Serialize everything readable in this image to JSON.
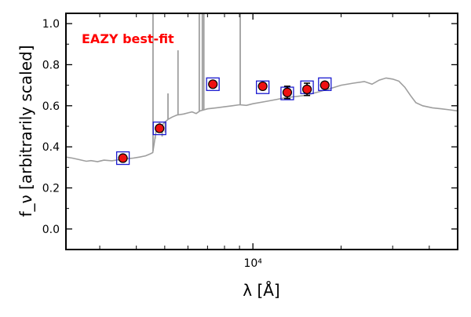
{
  "chart_data": {
    "type": "scatter",
    "xscale": "log",
    "xlim": [
      2300,
      50000
    ],
    "ylim": [
      -0.1,
      1.05
    ],
    "grid": false,
    "ylabel": "f_ν [arbitrarily scaled]",
    "xlabel": "λ [Å]",
    "ytick_labels": [
      "0.0",
      "0.2",
      "0.4",
      "0.6",
      "0.8",
      "1.0"
    ],
    "yticks": [
      0.0,
      0.2,
      0.4,
      0.6,
      0.8,
      1.0
    ],
    "xtick_labels": [
      "10⁴"
    ],
    "xticks": [
      10000
    ],
    "annotation": {
      "text": "EAZY best-fit",
      "color": "#ff0000"
    },
    "colors": {
      "model": "#9e9e9e",
      "points": "#ee1111",
      "boxes": "#1a1ad0",
      "errorbars": "#000000"
    },
    "photometry": [
      {
        "x": 3600,
        "y": 0.345,
        "err": 0.01,
        "model": 0.345
      },
      {
        "x": 4800,
        "y": 0.49,
        "err": 0.01,
        "model": 0.49
      },
      {
        "x": 7300,
        "y": 0.705,
        "err": 0.01,
        "model": 0.705
      },
      {
        "x": 10800,
        "y": 0.695,
        "err": 0.015,
        "model": 0.69
      },
      {
        "x": 13100,
        "y": 0.665,
        "err": 0.03,
        "model": 0.66
      },
      {
        "x": 15300,
        "y": 0.68,
        "err": 0.03,
        "model": 0.69
      },
      {
        "x": 17600,
        "y": 0.7,
        "err": 0.015,
        "model": 0.705
      }
    ],
    "model_curve": [
      [
        2300,
        0.35
      ],
      [
        2420,
        0.345
      ],
      [
        2550,
        0.338
      ],
      [
        2700,
        0.33
      ],
      [
        2800,
        0.333
      ],
      [
        2950,
        0.328
      ],
      [
        3100,
        0.335
      ],
      [
        3300,
        0.332
      ],
      [
        3500,
        0.338
      ],
      [
        3700,
        0.342
      ],
      [
        3900,
        0.345
      ],
      [
        4100,
        0.35
      ],
      [
        4300,
        0.356
      ],
      [
        4450,
        0.365
      ],
      [
        4550,
        0.372
      ],
      [
        4700,
        0.5
      ],
      [
        4800,
        0.515
      ],
      [
        4900,
        0.505
      ],
      [
        5000,
        0.52
      ],
      [
        5150,
        0.535
      ],
      [
        5300,
        0.545
      ],
      [
        5500,
        0.555
      ],
      [
        5800,
        0.56
      ],
      [
        6000,
        0.565
      ],
      [
        6200,
        0.57
      ],
      [
        6400,
        0.562
      ],
      [
        6600,
        0.575
      ],
      [
        7000,
        0.585
      ],
      [
        7500,
        0.59
      ],
      [
        8000,
        0.595
      ],
      [
        8500,
        0.6
      ],
      [
        9000,
        0.605
      ],
      [
        9500,
        0.602
      ],
      [
        10000,
        0.61
      ],
      [
        11000,
        0.62
      ],
      [
        12000,
        0.63
      ],
      [
        13000,
        0.64
      ],
      [
        14000,
        0.645
      ],
      [
        15000,
        0.65
      ],
      [
        16000,
        0.66
      ],
      [
        17000,
        0.67
      ],
      [
        18500,
        0.685
      ],
      [
        20000,
        0.7
      ],
      [
        22000,
        0.71
      ],
      [
        24000,
        0.718
      ],
      [
        25500,
        0.705
      ],
      [
        27000,
        0.725
      ],
      [
        28500,
        0.735
      ],
      [
        30000,
        0.73
      ],
      [
        31500,
        0.72
      ],
      [
        33000,
        0.69
      ],
      [
        34500,
        0.65
      ],
      [
        36000,
        0.615
      ],
      [
        38000,
        0.6
      ],
      [
        41000,
        0.59
      ],
      [
        44000,
        0.585
      ],
      [
        47000,
        0.58
      ],
      [
        50000,
        0.575
      ]
    ],
    "emission_lines": [
      {
        "x": 4560,
        "y": 1.05
      },
      {
        "x": 4640,
        "y": 0.44
      },
      {
        "x": 4700,
        "y": 0.48
      },
      {
        "x": 4900,
        "y": 0.45
      },
      {
        "x": 5020,
        "y": 0.47
      },
      {
        "x": 5130,
        "y": 0.66
      },
      {
        "x": 5550,
        "y": 0.87
      },
      {
        "x": 6560,
        "y": 1.05
      },
      {
        "x": 6720,
        "y": 1.05
      },
      {
        "x": 6800,
        "y": 1.05
      },
      {
        "x": 9050,
        "y": 1.05
      }
    ]
  }
}
